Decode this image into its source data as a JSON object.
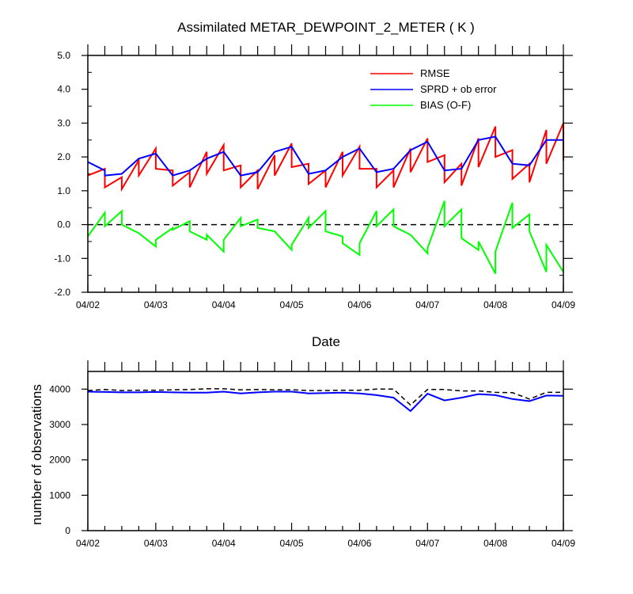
{
  "chart_data": [
    {
      "type": "line",
      "title": "Assimilated METAR_DEWPOINT_2_METER ( K )",
      "xlabel": "Date",
      "ylabel": "",
      "x_tick_labels": [
        "04/02",
        "04/03",
        "04/04",
        "04/05",
        "04/06",
        "04/07",
        "04/08",
        "04/09"
      ],
      "xlim": [
        0,
        7
      ],
      "ylim": [
        -2.0,
        5.0
      ],
      "y_ticks": [
        "-2.0",
        "-1.0",
        "0.0",
        "1.0",
        "2.0",
        "3.0",
        "4.0",
        "5.0"
      ],
      "zero_line": true,
      "legend_position": "top-right",
      "colors": {
        "rmse": "#ff0000",
        "spread": "#0000ff",
        "bias": "#00ff00",
        "zero": "#000000"
      },
      "series": [
        {
          "name": "RMSE",
          "x": [
            0.0,
            0.25,
            0.25,
            0.5,
            0.5,
            0.75,
            0.75,
            1.0,
            1.0,
            1.25,
            1.25,
            1.5,
            1.5,
            1.75,
            1.75,
            2.0,
            2.0,
            2.25,
            2.25,
            2.5,
            2.5,
            2.75,
            2.75,
            3.0,
            3.0,
            3.25,
            3.25,
            3.5,
            3.5,
            3.75,
            3.75,
            4.0,
            4.0,
            4.25,
            4.25,
            4.5,
            4.5,
            4.75,
            4.75,
            5.0,
            5.0,
            5.25,
            5.25,
            5.5,
            5.5,
            5.75,
            5.75,
            6.0,
            6.0,
            6.25,
            6.25,
            6.5,
            6.5,
            6.75,
            6.75,
            7.0,
            7.0
          ],
          "y": [
            1.45,
            1.65,
            1.1,
            1.4,
            1.05,
            1.9,
            1.45,
            2.25,
            1.65,
            1.6,
            1.15,
            1.55,
            1.1,
            2.15,
            1.5,
            2.35,
            1.6,
            1.75,
            1.1,
            1.6,
            1.05,
            2.05,
            1.45,
            2.4,
            1.7,
            1.8,
            1.2,
            1.6,
            1.1,
            2.15,
            1.45,
            2.3,
            1.65,
            1.65,
            1.1,
            1.6,
            1.1,
            2.25,
            1.55,
            2.55,
            1.85,
            2.05,
            1.25,
            1.8,
            1.15,
            2.55,
            1.7,
            2.9,
            2.0,
            2.2,
            1.35,
            1.8,
            1.25,
            2.8,
            1.8,
            3.0,
            1.9
          ]
        },
        {
          "name": "SPRD + ob error",
          "x": [
            0.0,
            0.25,
            0.25,
            0.5,
            0.75,
            1.0,
            1.25,
            1.5,
            1.75,
            2.0,
            2.25,
            2.5,
            2.75,
            3.0,
            3.25,
            3.5,
            3.75,
            4.0,
            4.25,
            4.5,
            4.75,
            5.0,
            5.25,
            5.5,
            5.75,
            6.0,
            6.25,
            6.5,
            6.75,
            7.0
          ],
          "y": [
            1.85,
            1.6,
            1.45,
            1.5,
            1.95,
            2.1,
            1.45,
            1.6,
            1.95,
            2.15,
            1.45,
            1.55,
            2.15,
            2.3,
            1.5,
            1.6,
            2.0,
            2.25,
            1.55,
            1.65,
            2.2,
            2.45,
            1.6,
            1.65,
            2.5,
            2.6,
            1.8,
            1.75,
            2.5,
            2.5
          ]
        },
        {
          "name": "BIAS (O-F)",
          "x": [
            0.0,
            0.25,
            0.25,
            0.5,
            0.5,
            0.75,
            1.0,
            1.0,
            1.25,
            1.25,
            1.5,
            1.5,
            1.75,
            1.75,
            2.0,
            2.0,
            2.25,
            2.25,
            2.5,
            2.5,
            2.75,
            3.0,
            3.0,
            3.25,
            3.25,
            3.5,
            3.5,
            3.75,
            3.75,
            4.0,
            4.0,
            4.25,
            4.25,
            4.5,
            4.5,
            4.75,
            5.0,
            5.0,
            5.25,
            5.25,
            5.5,
            5.5,
            5.75,
            5.75,
            6.0,
            6.0,
            6.25,
            6.25,
            6.5,
            6.5,
            6.75,
            6.75,
            7.0
          ],
          "y": [
            -0.35,
            0.35,
            -0.05,
            0.4,
            0.0,
            -0.25,
            -0.65,
            -0.45,
            -0.1,
            -0.15,
            0.1,
            -0.2,
            -0.45,
            -0.3,
            -0.8,
            -0.45,
            0.2,
            -0.05,
            0.15,
            -0.1,
            -0.2,
            -0.75,
            -0.6,
            0.2,
            -0.1,
            0.4,
            -0.2,
            -0.35,
            -0.55,
            -0.9,
            -0.55,
            0.4,
            -0.05,
            0.45,
            -0.05,
            -0.3,
            -0.85,
            -0.7,
            0.7,
            -0.05,
            0.45,
            -0.4,
            -0.75,
            -0.5,
            -1.45,
            -0.8,
            0.65,
            -0.1,
            0.3,
            -0.2,
            -1.4,
            -0.6,
            -1.4
          ]
        }
      ]
    },
    {
      "type": "line",
      "title": "",
      "xlabel": "",
      "ylabel": "number of observations",
      "x_tick_labels": [
        "04/02",
        "04/03",
        "04/04",
        "04/05",
        "04/06",
        "04/07",
        "04/08",
        "04/09"
      ],
      "xlim": [
        0,
        7
      ],
      "ylim": [
        0,
        4500
      ],
      "y_ticks": [
        "0",
        "1000",
        "2000",
        "3000",
        "4000"
      ],
      "colors": {
        "available": "#000000",
        "assimilated": "#0000ff"
      },
      "series": [
        {
          "line_style": "dashed",
          "x": [
            0.0,
            0.25,
            0.5,
            0.75,
            1.0,
            1.25,
            1.5,
            1.75,
            2.0,
            2.25,
            2.5,
            2.75,
            3.0,
            3.25,
            3.5,
            3.75,
            4.0,
            4.25,
            4.5,
            4.75,
            5.0,
            5.25,
            5.5,
            5.75,
            6.0,
            6.25,
            6.5,
            6.75,
            7.0
          ],
          "y": [
            3960,
            3990,
            3960,
            3970,
            3970,
            3980,
            3990,
            4010,
            4010,
            3980,
            3990,
            3980,
            3980,
            3960,
            3960,
            3970,
            3970,
            4000,
            4000,
            3550,
            3990,
            3990,
            3950,
            3950,
            3910,
            3900,
            3720,
            3910,
            3910
          ]
        },
        {
          "line_style": "solid",
          "x": [
            0.0,
            0.25,
            0.5,
            0.75,
            1.0,
            1.25,
            1.5,
            1.75,
            2.0,
            2.25,
            2.5,
            2.75,
            3.0,
            3.25,
            3.5,
            3.75,
            4.0,
            4.25,
            4.5,
            4.75,
            5.0,
            5.25,
            5.5,
            5.75,
            6.0,
            6.25,
            6.5,
            6.75,
            7.0
          ],
          "y": [
            3930,
            3920,
            3910,
            3910,
            3920,
            3910,
            3900,
            3900,
            3930,
            3880,
            3910,
            3930,
            3930,
            3880,
            3890,
            3900,
            3880,
            3830,
            3760,
            3380,
            3870,
            3680,
            3760,
            3860,
            3830,
            3720,
            3660,
            3820,
            3810
          ]
        }
      ]
    }
  ]
}
